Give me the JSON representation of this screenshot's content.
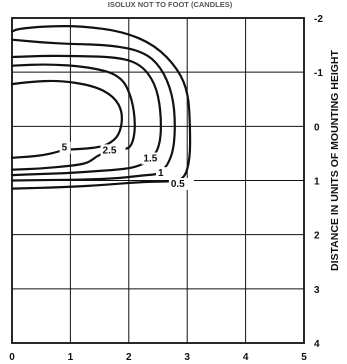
{
  "header_text": "ISOLUX NOT TO FOOT (CANDLES)",
  "chart_data": {
    "type": "contour",
    "title": "",
    "xlabel": "",
    "ylabel": "DISTANCE IN UNITS OF MOUNTING HEIGHT",
    "xlim": [
      0,
      5
    ],
    "ylim": [
      -2,
      4
    ],
    "y_inverted": true,
    "grid": true,
    "x_ticks": [
      "0",
      "1",
      "2",
      "3",
      "4",
      "5"
    ],
    "y_ticks": [
      "-2",
      "-1",
      "0",
      "1",
      "2",
      "3",
      "4"
    ],
    "series": [
      {
        "name": "5",
        "label_at": [
          0.85,
          0.45
        ],
        "points": [
          [
            0,
            0.58
          ],
          [
            0.3,
            0.56
          ],
          [
            0.55,
            0.53
          ],
          [
            0.75,
            0.48
          ],
          [
            0.9,
            0.43
          ],
          [
            1.15,
            0.42
          ],
          [
            1.4,
            0.4
          ],
          [
            1.65,
            0.34
          ],
          [
            1.85,
            0.15
          ],
          [
            1.9,
            -0.25
          ],
          [
            1.75,
            -0.55
          ],
          [
            1.4,
            -0.75
          ],
          [
            0.8,
            -0.85
          ],
          [
            0.3,
            -0.82
          ],
          [
            0,
            -0.78
          ]
        ]
      },
      {
        "name": "2.5",
        "label_at": [
          1.55,
          0.5
        ],
        "points": [
          [
            0,
            0.8
          ],
          [
            0.5,
            0.78
          ],
          [
            1.0,
            0.73
          ],
          [
            1.3,
            0.68
          ],
          [
            1.45,
            0.55
          ],
          [
            1.6,
            0.48
          ],
          [
            1.9,
            0.43
          ],
          [
            2.05,
            0.38
          ],
          [
            2.12,
            0.0
          ],
          [
            2.05,
            -0.55
          ],
          [
            1.85,
            -0.95
          ],
          [
            1.3,
            -1.1
          ],
          [
            0.6,
            -1.15
          ],
          [
            0,
            -1.12
          ]
        ]
      },
      {
        "name": "1.5",
        "label_at": [
          2.25,
          0.65
        ],
        "points": [
          [
            0,
            0.9
          ],
          [
            0.5,
            0.88
          ],
          [
            1.0,
            0.86
          ],
          [
            1.4,
            0.83
          ],
          [
            1.8,
            0.8
          ],
          [
            2.1,
            0.76
          ],
          [
            2.4,
            0.62
          ],
          [
            2.55,
            0.3
          ],
          [
            2.55,
            -0.3
          ],
          [
            2.45,
            -0.8
          ],
          [
            2.2,
            -1.15
          ],
          [
            1.8,
            -1.28
          ],
          [
            1.0,
            -1.3
          ],
          [
            0.5,
            -1.3
          ],
          [
            0,
            -1.28
          ]
        ]
      },
      {
        "name": "1",
        "label_at": [
          2.5,
          0.92
        ],
        "points": [
          [
            0,
            1.0
          ],
          [
            0.8,
            0.99
          ],
          [
            1.4,
            0.98
          ],
          [
            1.9,
            0.95
          ],
          [
            2.3,
            0.9
          ],
          [
            2.55,
            0.88
          ],
          [
            2.75,
            0.55
          ],
          [
            2.8,
            0.0
          ],
          [
            2.75,
            -0.6
          ],
          [
            2.55,
            -1.1
          ],
          [
            2.25,
            -1.38
          ],
          [
            1.7,
            -1.5
          ],
          [
            1.0,
            -1.52
          ],
          [
            0.5,
            -1.55
          ],
          [
            0,
            -1.6
          ]
        ]
      },
      {
        "name": "0.5",
        "label_at": [
          2.72,
          1.12
        ],
        "points": [
          [
            0,
            1.15
          ],
          [
            1.0,
            1.12
          ],
          [
            1.6,
            1.08
          ],
          [
            2.3,
            1.02
          ],
          [
            2.7,
            1.02
          ],
          [
            2.95,
            0.98
          ],
          [
            3.05,
            0.6
          ],
          [
            3.05,
            0.0
          ],
          [
            3.02,
            -0.6
          ],
          [
            2.85,
            -1.05
          ],
          [
            2.45,
            -1.5
          ],
          [
            1.9,
            -1.75
          ],
          [
            1.2,
            -1.85
          ],
          [
            0.6,
            -1.85
          ],
          [
            0.1,
            -1.8
          ],
          [
            0,
            -1.75
          ]
        ]
      }
    ]
  }
}
